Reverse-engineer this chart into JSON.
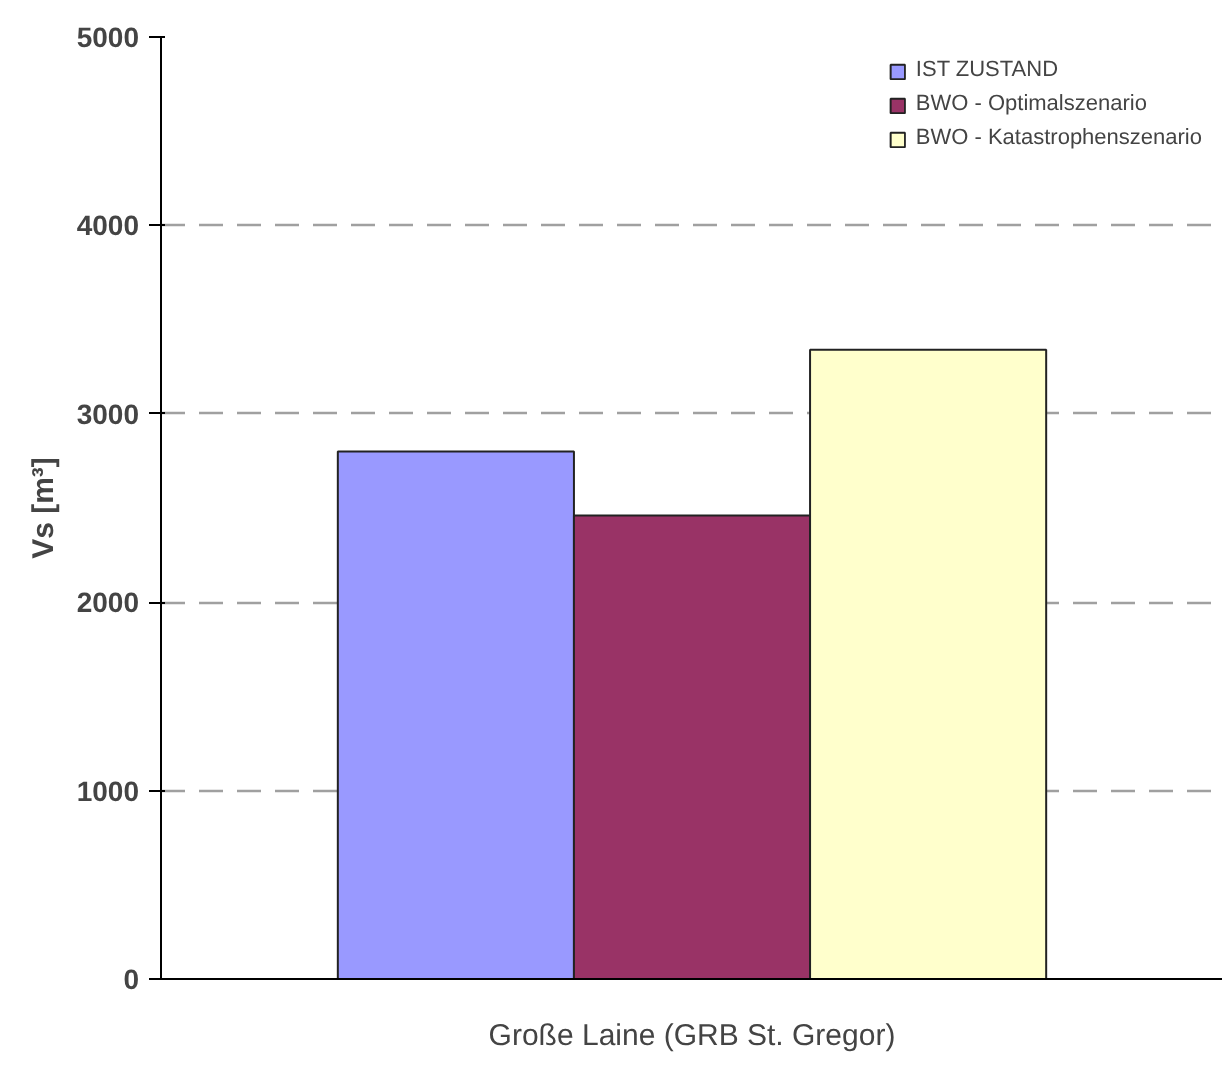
{
  "chart_data": {
    "type": "bar",
    "ylabel": "Vs [m³]",
    "categories": [
      "Große Laine (GRB St. Gregor)"
    ],
    "series": [
      {
        "name": "IST ZUSTAND",
        "color": "#9999ff",
        "values": [
          2800
        ]
      },
      {
        "name": "BWO - Optimalszenario",
        "color": "#993366",
        "values": [
          2460
        ]
      },
      {
        "name": "BWO - Katastrophenszenario",
        "color": "#ffffcc",
        "values": [
          3340
        ]
      }
    ],
    "ylim": [
      0,
      5000
    ],
    "yticks": [
      0,
      1000,
      2000,
      3000,
      4000,
      5000
    ],
    "grid": "y",
    "legend": "top right"
  }
}
